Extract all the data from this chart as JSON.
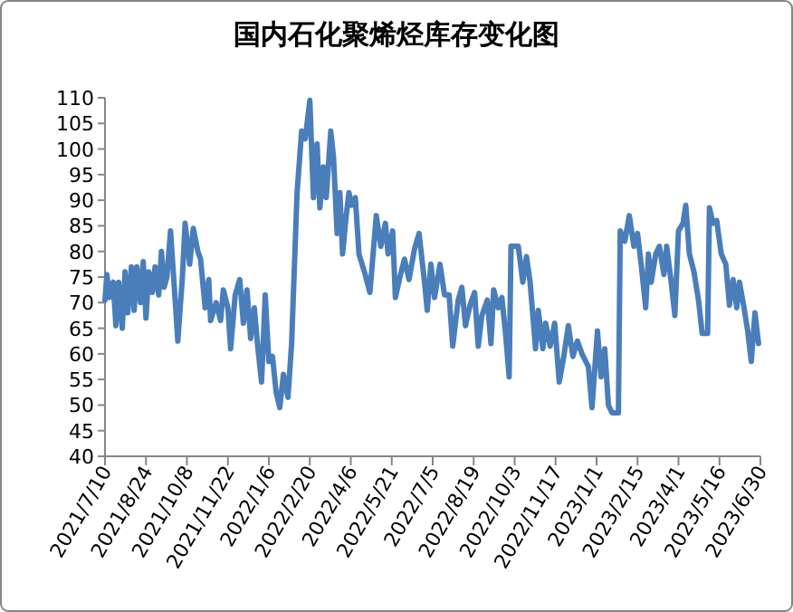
{
  "chart_data": {
    "type": "line",
    "title": "国内石化聚烯烃库存变化图",
    "x": [
      "2021-07-10",
      "2021-07-12",
      "2021-07-15",
      "2021-07-19",
      "2021-07-22",
      "2021-07-25",
      "2021-07-29",
      "2021-08-01",
      "2021-08-04",
      "2021-08-08",
      "2021-08-11",
      "2021-08-14",
      "2021-08-18",
      "2021-08-21",
      "2021-08-24",
      "2021-08-27",
      "2021-08-31",
      "2021-09-03",
      "2021-09-07",
      "2021-09-10",
      "2021-09-13",
      "2021-09-16",
      "2021-09-20",
      "2021-09-23",
      "2021-09-28",
      "2021-10-03",
      "2021-10-06",
      "2021-10-11",
      "2021-10-15",
      "2021-10-20",
      "2021-10-23",
      "2021-10-28",
      "2021-11-01",
      "2021-11-03",
      "2021-11-09",
      "2021-11-14",
      "2021-11-17",
      "2021-11-22",
      "2021-11-25",
      "2021-11-30",
      "2021-12-05",
      "2021-12-09",
      "2021-12-13",
      "2021-12-17",
      "2021-12-21",
      "2021-12-25",
      "2021-12-29",
      "2022-01-02",
      "2022-01-06",
      "2022-01-10",
      "2022-01-14",
      "2022-01-18",
      "2022-01-22",
      "2022-01-27",
      "2022-01-31",
      "2022-02-06",
      "2022-02-11",
      "2022-02-15",
      "2022-02-20",
      "2022-02-24",
      "2022-02-28",
      "2022-03-03",
      "2022-03-07",
      "2022-03-10",
      "2022-03-15",
      "2022-03-18",
      "2022-03-22",
      "2022-03-25",
      "2022-03-28",
      "2022-04-01",
      "2022-04-04",
      "2022-04-07",
      "2022-04-11",
      "2022-04-15",
      "2022-04-21",
      "2022-04-27",
      "2022-05-04",
      "2022-05-09",
      "2022-05-14",
      "2022-05-17",
      "2022-05-22",
      "2022-05-25",
      "2022-05-30",
      "2022-06-04",
      "2022-06-09",
      "2022-06-15",
      "2022-06-20",
      "2022-06-26",
      "2022-06-29",
      "2022-07-03",
      "2022-07-07",
      "2022-07-13",
      "2022-07-18",
      "2022-07-23",
      "2022-07-27",
      "2022-08-02",
      "2022-08-06",
      "2022-08-10",
      "2022-08-15",
      "2022-08-20",
      "2022-08-24",
      "2022-08-28",
      "2022-09-03",
      "2022-09-07",
      "2022-09-10",
      "2022-09-15",
      "2022-09-19",
      "2022-09-23",
      "2022-09-27",
      "2022-09-29",
      "2022-10-07",
      "2022-10-12",
      "2022-10-16",
      "2022-10-20",
      "2022-10-26",
      "2022-10-29",
      "2022-11-03",
      "2022-11-06",
      "2022-11-11",
      "2022-11-16",
      "2022-11-21",
      "2022-11-26",
      "2022-12-01",
      "2022-12-06",
      "2022-12-11",
      "2022-12-16",
      "2022-12-23",
      "2022-12-27",
      "2023-01-02",
      "2023-01-06",
      "2023-01-10",
      "2023-01-14",
      "2023-01-18",
      "2023-01-25",
      "2023-01-27",
      "2023-02-01",
      "2023-02-06",
      "2023-02-11",
      "2023-02-15",
      "2023-02-19",
      "2023-02-24",
      "2023-02-27",
      "2023-03-02",
      "2023-03-07",
      "2023-03-11",
      "2023-03-16",
      "2023-03-19",
      "2023-03-24",
      "2023-03-28",
      "2023-04-01",
      "2023-04-06",
      "2023-04-09",
      "2023-04-13",
      "2023-04-18",
      "2023-04-23",
      "2023-04-27",
      "2023-05-03",
      "2023-05-05",
      "2023-05-09",
      "2023-05-13",
      "2023-05-18",
      "2023-05-23",
      "2023-05-27",
      "2023-05-31",
      "2023-06-04",
      "2023-06-07",
      "2023-06-12",
      "2023-06-16",
      "2023-06-20",
      "2023-06-24",
      "2023-06-28"
    ],
    "series": [
      {
        "color": "#4a7ebb",
        "values": [
          70.5,
          75.5,
          71,
          74,
          65.5,
          74,
          65,
          76,
          68,
          77,
          68.5,
          77,
          70,
          78,
          67,
          76,
          72,
          77,
          71.5,
          80,
          73,
          75,
          84,
          76,
          62.5,
          75,
          85.5,
          77.5,
          84.5,
          80,
          78.5,
          69,
          74.5,
          66.5,
          70,
          66.5,
          72.5,
          69,
          61,
          71.5,
          74.5,
          66,
          72.5,
          63,
          69,
          61,
          54.5,
          71.5,
          58.5,
          59.5,
          52.5,
          49.5,
          56,
          51.5,
          62,
          91.5,
          103.5,
          102,
          109.5,
          90.5,
          101,
          88.5,
          96.5,
          90.5,
          103.5,
          98.5,
          83.5,
          91.5,
          79.5,
          87,
          91.5,
          89,
          90.5,
          79.5,
          76,
          72,
          87,
          81,
          85.5,
          79.5,
          84,
          71,
          75,
          78.5,
          74.5,
          80.5,
          83.5,
          74,
          68.5,
          77.5,
          71,
          77.5,
          71.5,
          71.5,
          61.5,
          70.5,
          73,
          65.5,
          69.5,
          72,
          61.5,
          67.5,
          70.5,
          62,
          72.5,
          69,
          71,
          64,
          55.5,
          81,
          81,
          74,
          79,
          74,
          61,
          68.5,
          61,
          66,
          61.5,
          66,
          54.5,
          59.5,
          65.5,
          59.5,
          62.5,
          60,
          57.5,
          49.5,
          64.5,
          55.5,
          61,
          50,
          48.5,
          48.5,
          84,
          82,
          87,
          81,
          83.5,
          77.5,
          69,
          79.5,
          74,
          79.5,
          81,
          75.5,
          81,
          74,
          67.5,
          84,
          85.5,
          89,
          79.5,
          76,
          70.5,
          64,
          64,
          88.5,
          85.5,
          86,
          79.5,
          77.5,
          69.5,
          74.5,
          69,
          74,
          69,
          64.5,
          58.5,
          68,
          62
        ]
      }
    ],
    "xlim": [
      "2021-07-10",
      "2023-06-30"
    ],
    "xticks": [
      {
        "value": "2021-07-10",
        "label": "2021/7/10"
      },
      {
        "value": "2021-08-24",
        "label": "2021/8/24"
      },
      {
        "value": "2021-10-08",
        "label": "2021/10/8"
      },
      {
        "value": "2021-11-22",
        "label": "2021/11/22"
      },
      {
        "value": "2022-01-06",
        "label": "2022/1/6"
      },
      {
        "value": "2022-02-20",
        "label": "2022/2/20"
      },
      {
        "value": "2022-04-06",
        "label": "2022/4/6"
      },
      {
        "value": "2022-05-21",
        "label": "2022/5/21"
      },
      {
        "value": "2022-07-05",
        "label": "2022/7/5"
      },
      {
        "value": "2022-08-19",
        "label": "2022/8/19"
      },
      {
        "value": "2022-10-03",
        "label": "2022/10/3"
      },
      {
        "value": "2022-11-17",
        "label": "2022/11/17"
      },
      {
        "value": "2023-01-01",
        "label": "2023/1/1"
      },
      {
        "value": "2023-02-15",
        "label": "2023/2/15"
      },
      {
        "value": "2023-04-01",
        "label": "2023/4/1"
      },
      {
        "value": "2023-05-16",
        "label": "2023/5/16"
      },
      {
        "value": "2023-06-30",
        "label": "2023/6/30"
      }
    ],
    "ylim": [
      40,
      110
    ],
    "yticks": [
      40,
      45,
      50,
      55,
      60,
      65,
      70,
      75,
      80,
      85,
      90,
      95,
      100,
      105,
      110
    ],
    "grid": false,
    "marker": "none",
    "line_style": "solid"
  }
}
